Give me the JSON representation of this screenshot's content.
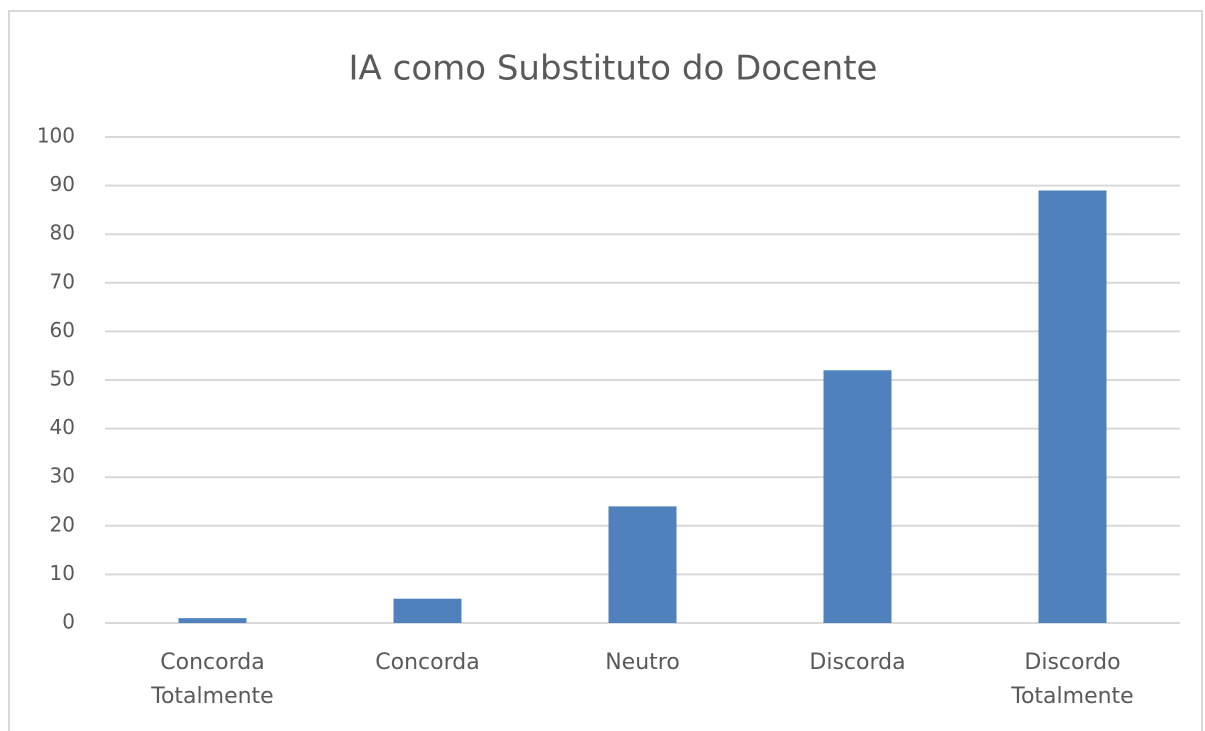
{
  "chart_data": {
    "type": "bar",
    "title": "IA como Substituto do Docente",
    "categories": [
      "Concorda Totalmente",
      "Concorda",
      "Neutro",
      "Discorda",
      "Discordo Totalmente"
    ],
    "values": [
      1,
      5,
      24,
      52,
      89
    ],
    "color": "#4f81bd",
    "ylim": [
      0,
      100
    ],
    "yticks": [
      0,
      10,
      20,
      30,
      40,
      50,
      60,
      70,
      80,
      90,
      100
    ],
    "grid": true
  }
}
